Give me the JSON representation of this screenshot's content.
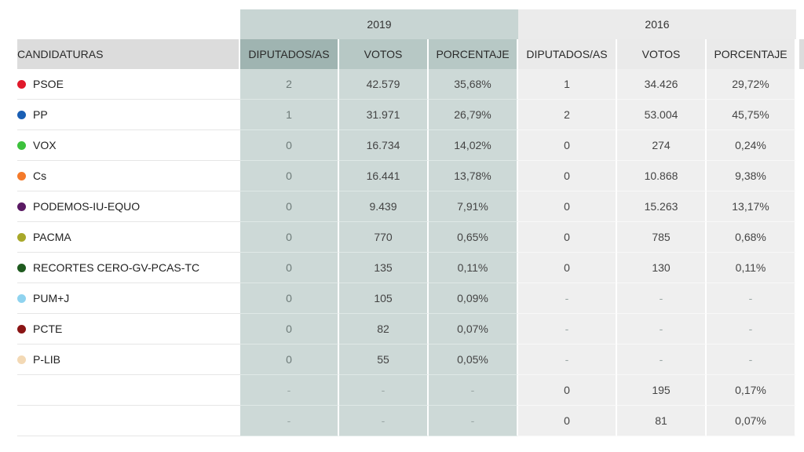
{
  "years": [
    "2019",
    "2016"
  ],
  "columns": {
    "party": "CANDIDATURAS",
    "seats": "DIPUTADOS/AS",
    "votes": "VOTOS",
    "percent": "PORCENTAJE"
  },
  "rows": [
    {
      "party": "PSOE",
      "color": "#e0192b",
      "y2019": {
        "seats": "2",
        "votes": "42.579",
        "percent": "35,68%"
      },
      "y2016": {
        "seats": "1",
        "votes": "34.426",
        "percent": "29,72%"
      }
    },
    {
      "party": "PP",
      "color": "#1a5fb4",
      "y2019": {
        "seats": "1",
        "votes": "31.971",
        "percent": "26,79%"
      },
      "y2016": {
        "seats": "2",
        "votes": "53.004",
        "percent": "45,75%"
      }
    },
    {
      "party": "VOX",
      "color": "#3cc13c",
      "y2019": {
        "seats": "0",
        "votes": "16.734",
        "percent": "14,02%"
      },
      "y2016": {
        "seats": "0",
        "votes": "274",
        "percent": "0,24%"
      }
    },
    {
      "party": "Cs",
      "color": "#f47a2a",
      "y2019": {
        "seats": "0",
        "votes": "16.441",
        "percent": "13,78%"
      },
      "y2016": {
        "seats": "0",
        "votes": "10.868",
        "percent": "9,38%"
      }
    },
    {
      "party": "PODEMOS-IU-EQUO",
      "color": "#5a1a63",
      "y2019": {
        "seats": "0",
        "votes": "9.439",
        "percent": "7,91%"
      },
      "y2016": {
        "seats": "0",
        "votes": "15.263",
        "percent": "13,17%"
      }
    },
    {
      "party": "PACMA",
      "color": "#a8a82a",
      "y2019": {
        "seats": "0",
        "votes": "770",
        "percent": "0,65%"
      },
      "y2016": {
        "seats": "0",
        "votes": "785",
        "percent": "0,68%"
      }
    },
    {
      "party": "RECORTES CERO-GV-PCAS-TC",
      "color": "#1f5a1f",
      "y2019": {
        "seats": "0",
        "votes": "135",
        "percent": "0,11%"
      },
      "y2016": {
        "seats": "0",
        "votes": "130",
        "percent": "0,11%"
      }
    },
    {
      "party": "PUM+J",
      "color": "#8fd3ef",
      "y2019": {
        "seats": "0",
        "votes": "105",
        "percent": "0,09%"
      },
      "y2016": {
        "seats": "-",
        "votes": "-",
        "percent": "-"
      }
    },
    {
      "party": "PCTE",
      "color": "#8a1414",
      "y2019": {
        "seats": "0",
        "votes": "82",
        "percent": "0,07%"
      },
      "y2016": {
        "seats": "-",
        "votes": "-",
        "percent": "-"
      }
    },
    {
      "party": "P-LIB",
      "color": "#f3d9b5",
      "y2019": {
        "seats": "0",
        "votes": "55",
        "percent": "0,05%"
      },
      "y2016": {
        "seats": "-",
        "votes": "-",
        "percent": "-"
      }
    },
    {
      "party": "",
      "color": "",
      "y2019": {
        "seats": "-",
        "votes": "-",
        "percent": "-"
      },
      "y2016": {
        "seats": "0",
        "votes": "195",
        "percent": "0,17%"
      }
    },
    {
      "party": "",
      "color": "",
      "y2019": {
        "seats": "-",
        "votes": "-",
        "percent": "-"
      },
      "y2016": {
        "seats": "0",
        "votes": "81",
        "percent": "0,07%"
      }
    }
  ]
}
